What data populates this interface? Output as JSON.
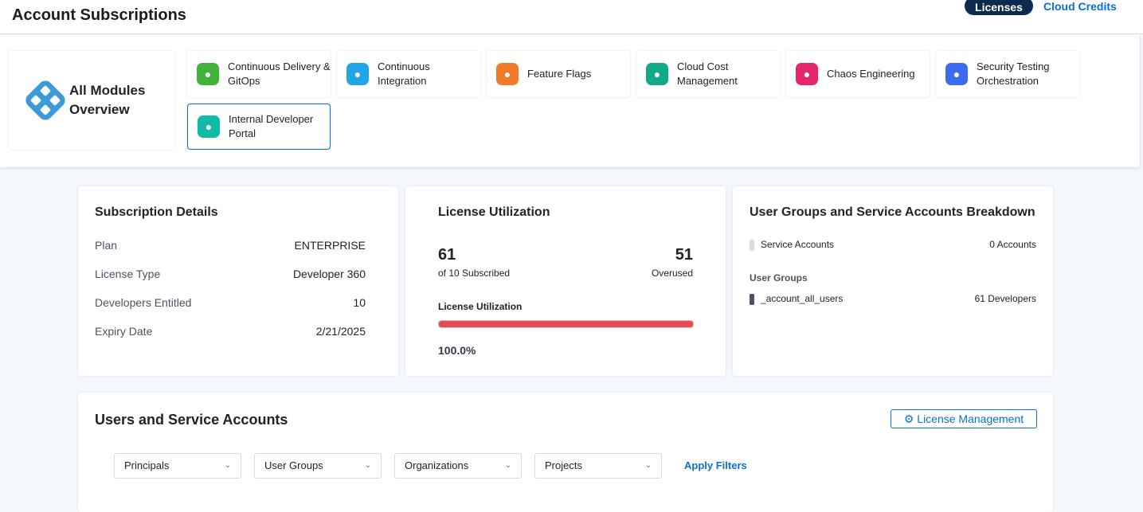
{
  "header": {
    "title": "Account Subscriptions",
    "tabs": [
      {
        "label": "Licenses",
        "active": true
      },
      {
        "label": "Cloud Credits",
        "active": false
      }
    ]
  },
  "modules": {
    "all": {
      "label": "All Modules Overview",
      "icon": "harness-modules-icon"
    },
    "items": [
      {
        "label": "Continuous Delivery & GitOps",
        "icon": "cd-icon",
        "color": "#3fb33a"
      },
      {
        "label": "Continuous Integration",
        "icon": "ci-icon",
        "color": "#22a5e6"
      },
      {
        "label": "Feature Flags",
        "icon": "ff-icon",
        "color": "#f07a2a"
      },
      {
        "label": "Cloud Cost Management",
        "icon": "ccm-icon",
        "color": "#12a98a"
      },
      {
        "label": "Chaos Engineering",
        "icon": "chaos-icon",
        "color": "#e6266a"
      },
      {
        "label": "Security Testing Orchestration",
        "icon": "sto-icon",
        "color": "#3b6cf0"
      },
      {
        "label": "Internal Developer Portal",
        "icon": "idp-icon",
        "color": "#10bba8",
        "selected": true
      }
    ]
  },
  "subscription": {
    "title": "Subscription Details",
    "rows": [
      {
        "label": "Plan",
        "value": "ENTERPRISE"
      },
      {
        "label": "License Type",
        "value": "Developer 360"
      },
      {
        "label": "Developers Entitled",
        "value": "10"
      },
      {
        "label": "Expiry Date",
        "value": "2/21/2025"
      }
    ]
  },
  "utilization": {
    "title": "License Utilization",
    "used": "61",
    "used_caption": "of 10 Subscribed",
    "overused": "51",
    "overused_caption": "Overused",
    "bar_label": "License Utilization",
    "percent_text": "100.0%",
    "percent": 100,
    "bar_color": "#e84a4f"
  },
  "breakdown": {
    "title": "User Groups and Service Accounts Breakdown",
    "service_label": "Service Accounts",
    "service_value": "0 Accounts",
    "groups_heading": "User Groups",
    "group_name": "_account_all_users",
    "group_value": "61 Developers"
  },
  "users": {
    "title": "Users and Service Accounts",
    "license_mgmt": "License Management",
    "filters": [
      "Principals",
      "User Groups",
      "Organizations",
      "Projects"
    ],
    "apply": "Apply Filters"
  }
}
